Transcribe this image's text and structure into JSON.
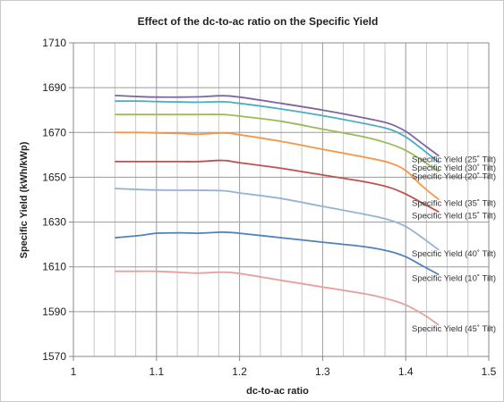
{
  "chart_data": {
    "type": "line",
    "title": "Effect of the dc-to-ac ratio on the Specific Yield",
    "xlabel": "dc-to-ac ratio",
    "ylabel": "Specific Yield (kWh/kWp)",
    "xlim": [
      1,
      1.5
    ],
    "ylim": [
      1570,
      1710
    ],
    "x_ticks": [
      "1",
      "1.1",
      "1.2",
      "1.3",
      "1.4",
      "1.5"
    ],
    "y_ticks": [
      "1570",
      "1590",
      "1610",
      "1630",
      "1650",
      "1670",
      "1690",
      "1710"
    ],
    "grid": "vertical minor + horizontal major",
    "legend": "labels at line ends (right)",
    "x": [
      1.05,
      1.08,
      1.1,
      1.13,
      1.15,
      1.18,
      1.2,
      1.25,
      1.3,
      1.35,
      1.38,
      1.4,
      1.42,
      1.44
    ],
    "series": [
      {
        "name": "Specific Yield (25˚ Tilt)",
        "color": "#8064a2",
        "values": [
          1686.5,
          1686.0,
          1685.8,
          1685.8,
          1685.9,
          1686.4,
          1685.8,
          1683.0,
          1680.0,
          1676.5,
          1674.0,
          1670.5,
          1665.0,
          1659.5
        ]
      },
      {
        "name": "Specific Yield (30˚ Tilt)",
        "color": "#4bacc6",
        "values": [
          1684.0,
          1684.0,
          1683.8,
          1683.6,
          1683.5,
          1683.7,
          1683.0,
          1680.5,
          1677.5,
          1674.0,
          1671.5,
          1668.0,
          1662.5,
          1656.5
        ]
      },
      {
        "name": "Specific Yield (20˚ Tilt)",
        "color": "#9bbb59",
        "values": [
          1678.0,
          1678.0,
          1678.0,
          1678.0,
          1678.0,
          1678.0,
          1677.3,
          1675.0,
          1671.5,
          1668.0,
          1665.0,
          1662.0,
          1657.5,
          1652.5
        ]
      },
      {
        "name": "Specific Yield (35˚ Tilt)",
        "color": "#f79646",
        "values": [
          1670.0,
          1670.0,
          1669.8,
          1669.5,
          1669.2,
          1669.8,
          1669.0,
          1666.0,
          1662.5,
          1659.0,
          1656.5,
          1653.0,
          1646.0,
          1640.0
        ]
      },
      {
        "name": "Specific Yield (15˚ Tilt)",
        "color": "#c0504d",
        "values": [
          1657.0,
          1657.0,
          1657.0,
          1657.0,
          1657.0,
          1657.5,
          1656.5,
          1654.0,
          1651.0,
          1648.0,
          1645.5,
          1642.5,
          1638.5,
          1634.5
        ]
      },
      {
        "name": "Specific Yield (40˚ Tilt)",
        "color": "#95b3d7",
        "values": [
          1645.0,
          1644.5,
          1644.3,
          1644.2,
          1644.2,
          1644.0,
          1643.0,
          1640.5,
          1637.0,
          1633.5,
          1631.0,
          1628.0,
          1623.0,
          1617.5
        ]
      },
      {
        "name": "Specific Yield (10˚ Tilt)",
        "color": "#4f81bd",
        "values": [
          1623.0,
          1624.0,
          1625.0,
          1625.2,
          1625.0,
          1625.5,
          1625.0,
          1623.0,
          1621.0,
          1619.0,
          1617.0,
          1614.5,
          1610.5,
          1606.5
        ]
      },
      {
        "name": "Specific Yield (45˚ Tilt)",
        "color": "#e6a09e",
        "values": [
          1608.0,
          1608.0,
          1608.0,
          1607.5,
          1607.2,
          1607.6,
          1607.0,
          1604.0,
          1601.0,
          1598.0,
          1595.5,
          1593.0,
          1589.0,
          1584.0
        ]
      }
    ]
  }
}
